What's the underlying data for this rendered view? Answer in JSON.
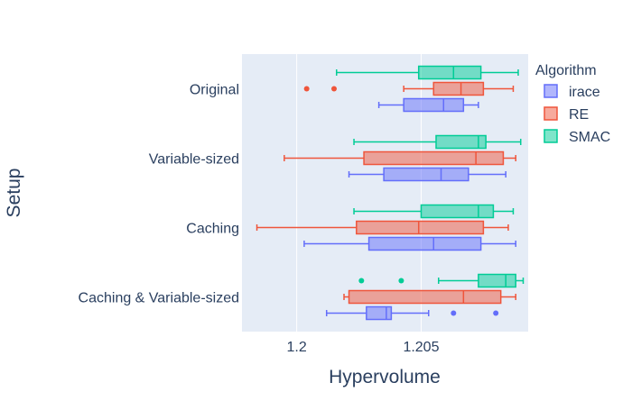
{
  "chart_data": {
    "type": "box",
    "orientation": "horizontal",
    "xlabel": "Hypervolume",
    "ylabel": "Setup",
    "xlim": [
      1.1978,
      1.2093
    ],
    "xticks": [
      1.2,
      1.205
    ],
    "xtick_labels": [
      "1.2",
      "1.205"
    ],
    "categories": [
      "Original",
      "Variable-sized",
      "Caching",
      "Caching & Variable-sized"
    ],
    "legend": {
      "title": "Algorithm",
      "position": "top-right",
      "entries": [
        "irace",
        "RE",
        "SMAC"
      ]
    },
    "grid": true,
    "series": [
      {
        "name": "irace",
        "color": "#636efa",
        "boxes": [
          {
            "category": "Original",
            "min": 1.2033,
            "q1": 1.2043,
            "median": 1.2059,
            "q3": 1.2067,
            "max": 1.2073,
            "outliers": []
          },
          {
            "category": "Variable-sized",
            "min": 1.2021,
            "q1": 1.2035,
            "median": 1.2058,
            "q3": 1.2069,
            "max": 1.2084,
            "outliers": []
          },
          {
            "category": "Caching",
            "min": 1.2003,
            "q1": 1.2029,
            "median": 1.2055,
            "q3": 1.2074,
            "max": 1.2088,
            "outliers": []
          },
          {
            "category": "Caching & Variable-sized",
            "min": 1.2012,
            "q1": 1.2028,
            "median": 1.2036,
            "q3": 1.2038,
            "max": 1.2053,
            "outliers": [
              1.2063,
              1.208
            ]
          }
        ]
      },
      {
        "name": "RE",
        "color": "#ef553b",
        "boxes": [
          {
            "category": "Original",
            "min": 1.2043,
            "q1": 1.2055,
            "median": 1.2066,
            "q3": 1.2075,
            "max": 1.2087,
            "outliers": [
              1.2004,
              1.2015
            ]
          },
          {
            "category": "Variable-sized",
            "min": 1.1995,
            "q1": 1.2027,
            "median": 1.2072,
            "q3": 1.2083,
            "max": 1.2088,
            "outliers": []
          },
          {
            "category": "Caching",
            "min": 1.1984,
            "q1": 1.2024,
            "median": 1.2049,
            "q3": 1.2075,
            "max": 1.2085,
            "outliers": []
          },
          {
            "category": "Caching & Variable-sized",
            "min": 1.2019,
            "q1": 1.2021,
            "median": 1.2067,
            "q3": 1.2082,
            "max": 1.2088,
            "outliers": []
          }
        ]
      },
      {
        "name": "SMAC",
        "color": "#00cc96",
        "boxes": [
          {
            "category": "Original",
            "min": 1.2016,
            "q1": 1.2049,
            "median": 1.2063,
            "q3": 1.2074,
            "max": 1.2089,
            "outliers": []
          },
          {
            "category": "Variable-sized",
            "min": 1.2023,
            "q1": 1.2056,
            "median": 1.2073,
            "q3": 1.2076,
            "max": 1.209,
            "outliers": []
          },
          {
            "category": "Caching",
            "min": 1.2023,
            "q1": 1.205,
            "median": 1.2073,
            "q3": 1.2079,
            "max": 1.2087,
            "outliers": []
          },
          {
            "category": "Caching & Variable-sized",
            "min": 1.2057,
            "q1": 1.2073,
            "median": 1.2084,
            "q3": 1.2088,
            "max": 1.2091,
            "outliers": [
              1.2026,
              1.2042
            ]
          }
        ]
      }
    ]
  }
}
